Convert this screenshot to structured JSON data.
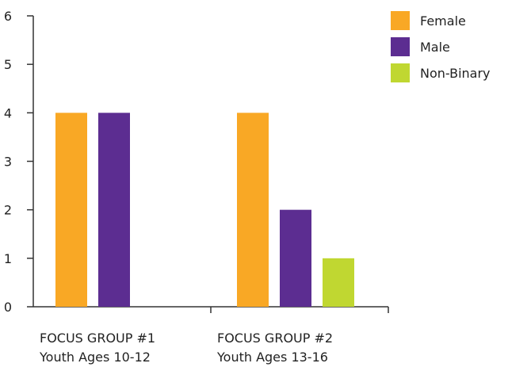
{
  "chart_data": {
    "type": "bar",
    "categories": [
      [
        "FOCUS GROUP #1",
        "Youth Ages 10-12"
      ],
      [
        "FOCUS GROUP #2",
        "Youth Ages 13-16"
      ]
    ],
    "series": [
      {
        "name": "Female",
        "color": "#F9A825",
        "values": [
          4,
          4
        ]
      },
      {
        "name": "Male",
        "color": "#5C2D91",
        "values": [
          4,
          2
        ]
      },
      {
        "name": "Non-Binary",
        "color": "#C0D731",
        "values": [
          0,
          1
        ]
      }
    ],
    "ylim": [
      0,
      6
    ],
    "yticks": [
      "0",
      "1",
      "2",
      "3",
      "4",
      "5",
      "6"
    ],
    "grid": false,
    "legend_position": "top-right",
    "title": "",
    "xlabel": "",
    "ylabel": ""
  }
}
